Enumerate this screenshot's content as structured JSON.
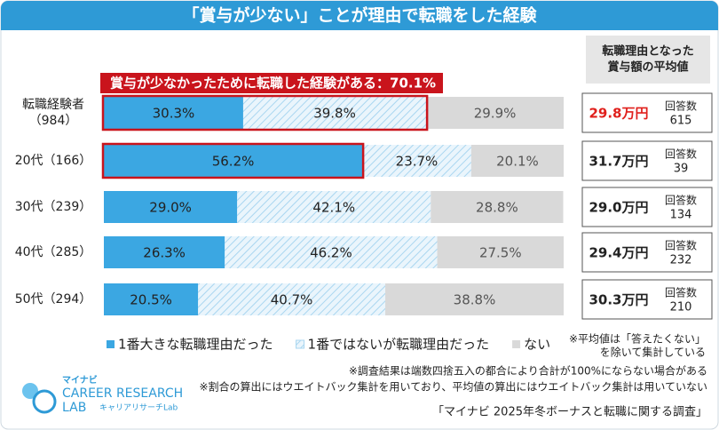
{
  "chart_data": {
    "type": "stacked_bar_horizontal",
    "title": "「賞与が少ない」ことが理由で転職をした経験",
    "categories": [
      "転職経験者（984）",
      "20代（166）",
      "30代（239）",
      "40代（285）",
      "50代（294）"
    ],
    "xlim": [
      0,
      100
    ],
    "series": [
      {
        "name": "1番大きな転職理由だった",
        "color": "#3ba7e2",
        "values": [
          30.3,
          56.2,
          29.0,
          26.3,
          20.5
        ],
        "value_labels": [
          "30.3%",
          "56.2%",
          "29.0%",
          "26.3%",
          "20.5%"
        ]
      },
      {
        "name": "1番ではないが転職理由だった",
        "color": "#a9d6f0",
        "values": [
          39.8,
          23.7,
          42.1,
          46.2,
          40.7
        ],
        "value_labels": [
          "39.8%",
          "23.7%",
          "42.1%",
          "46.2%",
          "40.7%"
        ]
      },
      {
        "name": "ない",
        "color": "#d9d9d9",
        "values": [
          29.9,
          20.1,
          28.8,
          27.5,
          38.8
        ],
        "value_labels": [
          "29.9%",
          "20.1%",
          "28.8%",
          "27.5%",
          "38.8%"
        ]
      }
    ],
    "annotation": "賞与が少なかったために転職した経験がある：70.1%"
  },
  "side_table": {
    "header": [
      "転職理由となった",
      "賞与額の平均値"
    ],
    "rows": [
      {
        "amount": "29.8万円",
        "count_label": "回答数",
        "count": "615"
      },
      {
        "amount": "31.7万円",
        "count_label": "回答数",
        "count": "39"
      },
      {
        "amount": "29.0万円",
        "count_label": "回答数",
        "count": "134"
      },
      {
        "amount": "29.4万円",
        "count_label": "回答数",
        "count": "232"
      },
      {
        "amount": "30.3万円",
        "count_label": "回答数",
        "count": "210"
      }
    ],
    "note": [
      "※平均値は「答えたくない」",
      "を除いて集計している"
    ]
  },
  "footnotes": [
    "※調査結果は端数四捨五入の都合により合計が100%にならない場合がある",
    "※割合の算出にはウエイトバック集計を用いており、平均値の算出にはウエイトバック集計は用いていない"
  ],
  "source": "「マイナビ 2025年冬ボーナスと転職に関する調査」",
  "logo": {
    "brand": "マイナビ",
    "line1": "CAREER RESEARCH",
    "line2": "LAB",
    "sub": "キャリアリサーチLab"
  }
}
